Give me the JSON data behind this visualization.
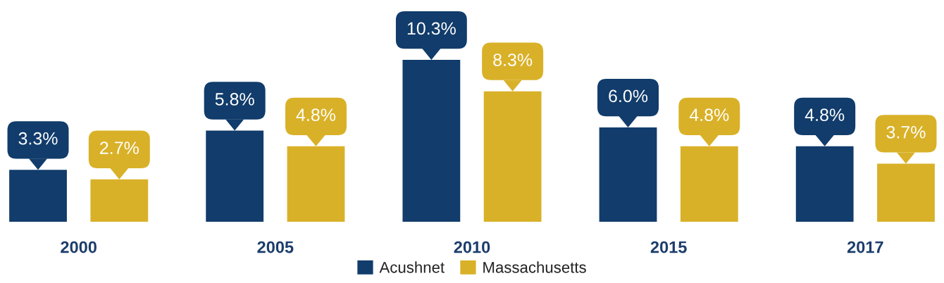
{
  "chart_data": {
    "type": "bar",
    "categories": [
      "2000",
      "2005",
      "2010",
      "2015",
      "2017"
    ],
    "series": [
      {
        "name": "Acushnet",
        "color": "#113c6b",
        "values": [
          3.3,
          5.8,
          10.3,
          6.0,
          4.8
        ],
        "value_labels": [
          "3.3%",
          "5.8%",
          "10.3%",
          "6.0%",
          "4.8%"
        ]
      },
      {
        "name": "Massachusetts",
        "color": "#d9b128",
        "values": [
          2.7,
          4.8,
          8.3,
          4.8,
          3.7
        ],
        "value_labels": [
          "2.7%",
          "4.8%",
          "8.3%",
          "4.8%",
          "3.7%"
        ]
      }
    ],
    "legend": "bottom",
    "grid": false
  }
}
